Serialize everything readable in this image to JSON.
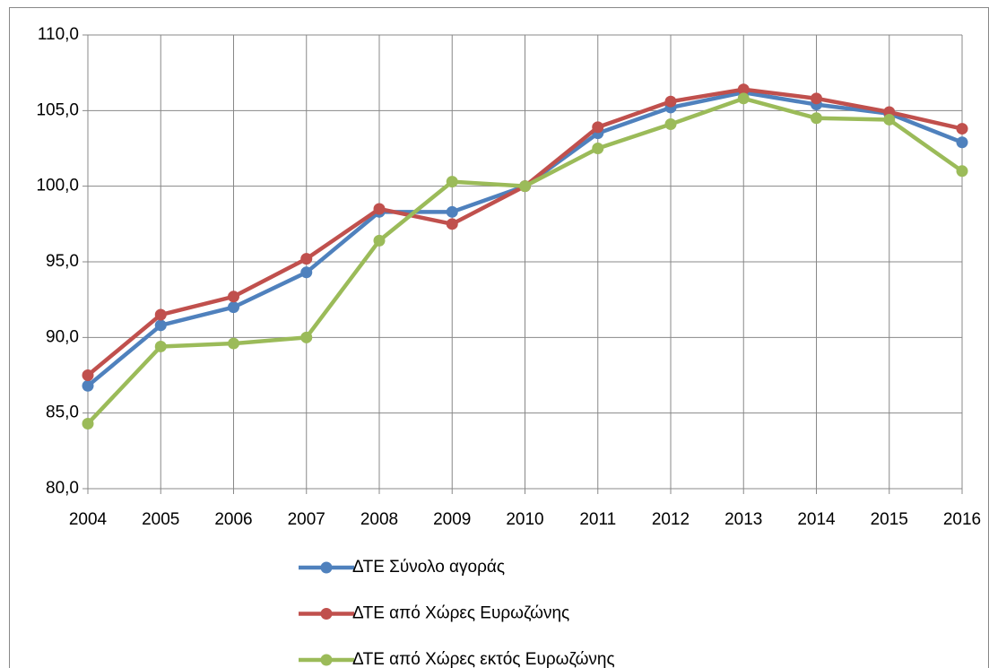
{
  "chart_data": {
    "type": "line",
    "categories": [
      "2004",
      "2005",
      "2006",
      "2007",
      "2008",
      "2009",
      "2010",
      "2011",
      "2012",
      "2013",
      "2014",
      "2015",
      "2016"
    ],
    "series": [
      {
        "name": "ΔΤΕ Σύνολο αγοράς",
        "color": "#4f81bd",
        "values": [
          86.8,
          90.8,
          92.0,
          94.3,
          98.3,
          98.3,
          100.0,
          103.5,
          105.2,
          106.2,
          105.4,
          104.8,
          102.9
        ]
      },
      {
        "name": "ΔΤΕ από Χώρες Ευρωζώνης",
        "color": "#c0504d",
        "values": [
          87.5,
          91.5,
          92.7,
          95.2,
          98.5,
          97.5,
          100.0,
          103.9,
          105.6,
          106.4,
          105.8,
          104.9,
          103.8
        ]
      },
      {
        "name": "ΔΤΕ από Χώρες εκτός Ευρωζώνης",
        "color": "#9bbb59",
        "values": [
          84.3,
          89.4,
          89.6,
          90.0,
          96.4,
          100.3,
          100.0,
          102.5,
          104.1,
          105.8,
          104.5,
          104.4,
          101.0
        ]
      }
    ],
    "ylim": [
      80,
      110
    ],
    "yticks": [
      {
        "value": 80,
        "label": "80,0"
      },
      {
        "value": 85,
        "label": "85,0"
      },
      {
        "value": 90,
        "label": "90,0"
      },
      {
        "value": 95,
        "label": "95,0"
      },
      {
        "value": 100,
        "label": "100,0"
      },
      {
        "value": 105,
        "label": "105,0"
      },
      {
        "value": 110,
        "label": "110,0"
      }
    ],
    "grid": true,
    "legend": "bottom"
  }
}
